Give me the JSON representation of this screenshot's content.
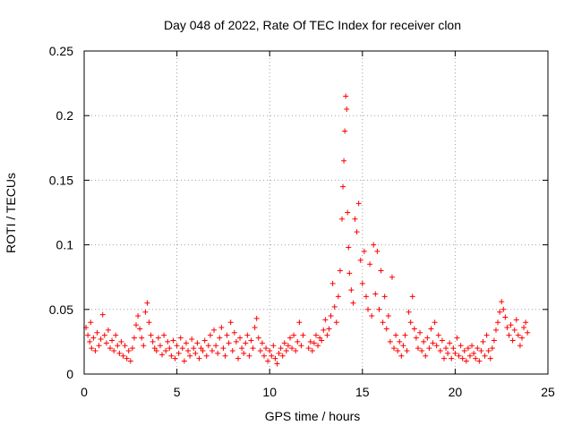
{
  "chart_data": {
    "type": "scatter",
    "title": "Day 048 of 2022, Rate Of TEC Index for receiver clon",
    "xlabel": "GPS time / hours",
    "ylabel": "ROTI / TECUs",
    "xlim": [
      0,
      25
    ],
    "ylim": [
      0,
      0.25
    ],
    "x_ticks": [
      "0",
      "5",
      "10",
      "15",
      "20",
      "25"
    ],
    "y_ticks": [
      "0",
      "0.05",
      "0.1",
      "0.15",
      "0.2",
      "0.25"
    ],
    "grid": true,
    "marker": "plus",
    "series_color": "#ff0000",
    "points": [
      [
        0.1,
        0.036
      ],
      [
        0.2,
        0.03
      ],
      [
        0.3,
        0.025
      ],
      [
        0.35,
        0.04
      ],
      [
        0.4,
        0.02
      ],
      [
        0.5,
        0.028
      ],
      [
        0.6,
        0.018
      ],
      [
        0.7,
        0.032
      ],
      [
        0.8,
        0.022
      ],
      [
        0.9,
        0.027
      ],
      [
        1.0,
        0.046
      ],
      [
        1.1,
        0.03
      ],
      [
        1.2,
        0.024
      ],
      [
        1.3,
        0.034
      ],
      [
        1.4,
        0.02
      ],
      [
        1.5,
        0.026
      ],
      [
        1.6,
        0.018
      ],
      [
        1.7,
        0.03
      ],
      [
        1.8,
        0.022
      ],
      [
        1.9,
        0.016
      ],
      [
        2.0,
        0.025
      ],
      [
        2.1,
        0.014
      ],
      [
        2.2,
        0.022
      ],
      [
        2.3,
        0.012
      ],
      [
        2.4,
        0.018
      ],
      [
        2.5,
        0.01
      ],
      [
        2.6,
        0.02
      ],
      [
        2.7,
        0.028
      ],
      [
        2.8,
        0.038
      ],
      [
        2.9,
        0.045
      ],
      [
        3.0,
        0.035
      ],
      [
        3.1,
        0.028
      ],
      [
        3.2,
        0.022
      ],
      [
        3.3,
        0.048
      ],
      [
        3.4,
        0.055
      ],
      [
        3.5,
        0.04
      ],
      [
        3.6,
        0.03
      ],
      [
        3.7,
        0.025
      ],
      [
        3.8,
        0.02
      ],
      [
        3.9,
        0.018
      ],
      [
        4.0,
        0.028
      ],
      [
        4.1,
        0.022
      ],
      [
        4.2,
        0.015
      ],
      [
        4.3,
        0.03
      ],
      [
        4.4,
        0.018
      ],
      [
        4.5,
        0.025
      ],
      [
        4.6,
        0.02
      ],
      [
        4.7,
        0.014
      ],
      [
        4.8,
        0.026
      ],
      [
        4.9,
        0.012
      ],
      [
        5.0,
        0.022
      ],
      [
        5.1,
        0.016
      ],
      [
        5.2,
        0.028
      ],
      [
        5.3,
        0.02
      ],
      [
        5.4,
        0.01
      ],
      [
        5.5,
        0.024
      ],
      [
        5.6,
        0.018
      ],
      [
        5.7,
        0.014
      ],
      [
        5.8,
        0.027
      ],
      [
        5.9,
        0.02
      ],
      [
        6.0,
        0.016
      ],
      [
        6.1,
        0.024
      ],
      [
        6.2,
        0.012
      ],
      [
        6.3,
        0.02
      ],
      [
        6.4,
        0.018
      ],
      [
        6.5,
        0.026
      ],
      [
        6.6,
        0.014
      ],
      [
        6.7,
        0.022
      ],
      [
        6.8,
        0.03
      ],
      [
        6.9,
        0.018
      ],
      [
        7.0,
        0.034
      ],
      [
        7.1,
        0.022
      ],
      [
        7.2,
        0.016
      ],
      [
        7.3,
        0.028
      ],
      [
        7.4,
        0.036
      ],
      [
        7.5,
        0.02
      ],
      [
        7.6,
        0.014
      ],
      [
        7.7,
        0.03
      ],
      [
        7.8,
        0.024
      ],
      [
        7.9,
        0.04
      ],
      [
        8.0,
        0.018
      ],
      [
        8.1,
        0.032
      ],
      [
        8.2,
        0.025
      ],
      [
        8.3,
        0.012
      ],
      [
        8.4,
        0.028
      ],
      [
        8.5,
        0.02
      ],
      [
        8.6,
        0.016
      ],
      [
        8.7,
        0.024
      ],
      [
        8.8,
        0.03
      ],
      [
        8.9,
        0.014
      ],
      [
        9.0,
        0.026
      ],
      [
        9.1,
        0.02
      ],
      [
        9.2,
        0.036
      ],
      [
        9.3,
        0.043
      ],
      [
        9.4,
        0.028
      ],
      [
        9.5,
        0.018
      ],
      [
        9.6,
        0.024
      ],
      [
        9.7,
        0.014
      ],
      [
        9.8,
        0.02
      ],
      [
        9.9,
        0.01
      ],
      [
        10.0,
        0.018
      ],
      [
        10.1,
        0.014
      ],
      [
        10.2,
        0.022
      ],
      [
        10.3,
        0.012
      ],
      [
        10.4,
        0.008
      ],
      [
        10.5,
        0.016
      ],
      [
        10.6,
        0.02
      ],
      [
        10.7,
        0.014
      ],
      [
        10.8,
        0.024
      ],
      [
        10.9,
        0.018
      ],
      [
        11.0,
        0.022
      ],
      [
        11.1,
        0.028
      ],
      [
        11.2,
        0.02
      ],
      [
        11.3,
        0.03
      ],
      [
        11.4,
        0.018
      ],
      [
        11.5,
        0.025
      ],
      [
        11.6,
        0.04
      ],
      [
        11.7,
        0.022
      ],
      [
        11.8,
        0.03
      ],
      [
        12.1,
        0.02
      ],
      [
        12.2,
        0.025
      ],
      [
        12.3,
        0.018
      ],
      [
        12.4,
        0.024
      ],
      [
        12.5,
        0.03
      ],
      [
        12.6,
        0.022
      ],
      [
        12.7,
        0.028
      ],
      [
        12.8,
        0.026
      ],
      [
        12.9,
        0.034
      ],
      [
        13.0,
        0.042
      ],
      [
        13.1,
        0.03
      ],
      [
        13.2,
        0.035
      ],
      [
        13.3,
        0.045
      ],
      [
        13.4,
        0.07
      ],
      [
        13.5,
        0.052
      ],
      [
        13.6,
        0.04
      ],
      [
        13.7,
        0.06
      ],
      [
        13.8,
        0.08
      ],
      [
        13.9,
        0.12
      ],
      [
        13.95,
        0.145
      ],
      [
        14.0,
        0.165
      ],
      [
        14.05,
        0.188
      ],
      [
        14.1,
        0.215
      ],
      [
        14.15,
        0.205
      ],
      [
        14.2,
        0.125
      ],
      [
        14.25,
        0.098
      ],
      [
        14.3,
        0.078
      ],
      [
        14.4,
        0.065
      ],
      [
        14.5,
        0.055
      ],
      [
        14.6,
        0.12
      ],
      [
        14.7,
        0.11
      ],
      [
        14.8,
        0.132
      ],
      [
        14.9,
        0.088
      ],
      [
        15.0,
        0.07
      ],
      [
        15.1,
        0.095
      ],
      [
        15.2,
        0.06
      ],
      [
        15.3,
        0.05
      ],
      [
        15.4,
        0.085
      ],
      [
        15.5,
        0.045
      ],
      [
        15.6,
        0.1
      ],
      [
        15.7,
        0.062
      ],
      [
        15.8,
        0.095
      ],
      [
        15.9,
        0.05
      ],
      [
        16.0,
        0.08
      ],
      [
        16.1,
        0.04
      ],
      [
        16.2,
        0.06
      ],
      [
        16.3,
        0.035
      ],
      [
        16.4,
        0.045
      ],
      [
        16.5,
        0.025
      ],
      [
        16.6,
        0.075
      ],
      [
        16.7,
        0.02
      ],
      [
        16.8,
        0.03
      ],
      [
        16.9,
        0.018
      ],
      [
        17.0,
        0.025
      ],
      [
        17.1,
        0.014
      ],
      [
        17.2,
        0.022
      ],
      [
        17.3,
        0.03
      ],
      [
        17.4,
        0.018
      ],
      [
        17.5,
        0.048
      ],
      [
        17.6,
        0.04
      ],
      [
        17.7,
        0.06
      ],
      [
        17.8,
        0.035
      ],
      [
        17.9,
        0.028
      ],
      [
        18.0,
        0.02
      ],
      [
        18.1,
        0.032
      ],
      [
        18.2,
        0.018
      ],
      [
        18.3,
        0.025
      ],
      [
        18.4,
        0.014
      ],
      [
        18.5,
        0.028
      ],
      [
        18.6,
        0.02
      ],
      [
        18.7,
        0.035
      ],
      [
        18.8,
        0.024
      ],
      [
        18.9,
        0.04
      ],
      [
        19.0,
        0.022
      ],
      [
        19.1,
        0.03
      ],
      [
        19.2,
        0.018
      ],
      [
        19.3,
        0.026
      ],
      [
        19.4,
        0.012
      ],
      [
        19.5,
        0.02
      ],
      [
        19.6,
        0.016
      ],
      [
        19.7,
        0.024
      ],
      [
        19.8,
        0.012
      ],
      [
        19.9,
        0.02
      ],
      [
        20.0,
        0.016
      ],
      [
        20.1,
        0.028
      ],
      [
        20.2,
        0.014
      ],
      [
        20.3,
        0.022
      ],
      [
        20.4,
        0.012
      ],
      [
        20.5,
        0.018
      ],
      [
        20.6,
        0.01
      ],
      [
        20.7,
        0.02
      ],
      [
        20.8,
        0.014
      ],
      [
        20.9,
        0.022
      ],
      [
        21.0,
        0.016
      ],
      [
        21.1,
        0.012
      ],
      [
        21.2,
        0.02
      ],
      [
        21.3,
        0.01
      ],
      [
        21.4,
        0.018
      ],
      [
        21.5,
        0.025
      ],
      [
        21.6,
        0.014
      ],
      [
        21.7,
        0.03
      ],
      [
        21.8,
        0.018
      ],
      [
        21.9,
        0.012
      ],
      [
        22.0,
        0.02
      ],
      [
        22.1,
        0.026
      ],
      [
        22.2,
        0.034
      ],
      [
        22.3,
        0.04
      ],
      [
        22.4,
        0.048
      ],
      [
        22.5,
        0.056
      ],
      [
        22.6,
        0.05
      ],
      [
        22.7,
        0.044
      ],
      [
        22.8,
        0.036
      ],
      [
        22.9,
        0.03
      ],
      [
        23.0,
        0.038
      ],
      [
        23.1,
        0.026
      ],
      [
        23.2,
        0.034
      ],
      [
        23.3,
        0.042
      ],
      [
        23.4,
        0.03
      ],
      [
        23.5,
        0.022
      ],
      [
        23.6,
        0.028
      ],
      [
        23.7,
        0.036
      ],
      [
        23.8,
        0.04
      ],
      [
        23.9,
        0.032
      ]
    ]
  }
}
